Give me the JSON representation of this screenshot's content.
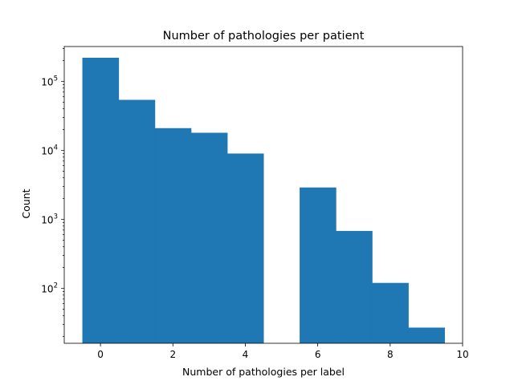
{
  "chart_data": {
    "type": "bar",
    "title": "Number of pathologies per patient",
    "xlabel": "Number of pathologies per label",
    "ylabel": "Count",
    "y_scale": "log",
    "bar_color": "#1f77b4",
    "x": [
      0,
      1,
      2,
      3,
      4,
      5,
      6,
      7,
      8,
      9
    ],
    "values": [
      220000,
      54000,
      21000,
      18000,
      9000,
      0,
      2900,
      680,
      120,
      27
    ],
    "bar_width": 1,
    "xlim": [
      -1,
      10
    ],
    "ylim": [
      16,
      320000
    ],
    "x_ticks": [
      0,
      2,
      4,
      6,
      8,
      10
    ],
    "y_ticks": [
      {
        "value": 100,
        "base": "10",
        "exp": "2"
      },
      {
        "value": 1000,
        "base": "10",
        "exp": "3"
      },
      {
        "value": 10000,
        "base": "10",
        "exp": "4"
      },
      {
        "value": 100000,
        "base": "10",
        "exp": "5"
      }
    ],
    "grid": false,
    "legend": "none"
  }
}
